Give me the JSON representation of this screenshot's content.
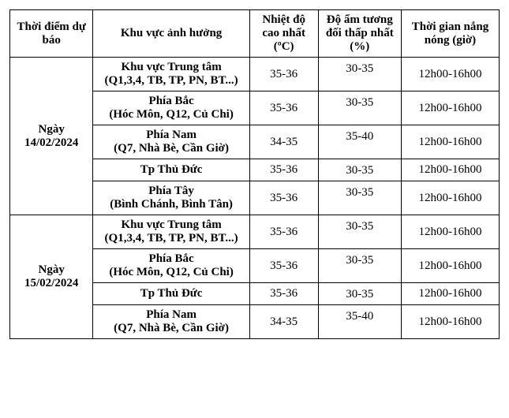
{
  "headers": {
    "date": "Thời điểm dự báo",
    "area": "Khu vực ảnh hưởng",
    "temp": "Nhiệt độ cao nhất (ºC)",
    "humid": "Độ ẩm tương đối thấp nhất (%)",
    "hours": "Thời gian nắng nóng (giờ)"
  },
  "groups": [
    {
      "date": "Ngày 14/02/2024",
      "rows": [
        {
          "area": "Khu vực Trung tâm (Q1,3,4, TB, TP, PN, BT...)",
          "temp": "35-36",
          "humid": "30-35",
          "hours": "12h00-16h00"
        },
        {
          "area": "Phía Bắc (Hóc Môn, Q12, Củ Chi)",
          "temp": "35-36",
          "humid": "30-35",
          "hours": "12h00-16h00"
        },
        {
          "area": "Phía Nam (Q7, Nhà Bè, Cần Giờ)",
          "temp": "34-35",
          "humid": "35-40",
          "hours": "12h00-16h00"
        },
        {
          "area": "Tp Thủ Đức",
          "temp": "35-36",
          "humid": "30-35",
          "hours": "12h00-16h00"
        },
        {
          "area": "Phía Tây (Bình Chánh, Bình Tân)",
          "temp": "35-36",
          "humid": "30-35",
          "hours": "12h00-16h00"
        }
      ]
    },
    {
      "date": "Ngày 15/02/2024",
      "rows": [
        {
          "area": "Khu vực Trung tâm (Q1,3,4, TB, TP, PN, BT...)",
          "temp": "35-36",
          "humid": "30-35",
          "hours": "12h00-16h00"
        },
        {
          "area": "Phía Bắc (Hóc Môn, Q12, Củ Chi)",
          "temp": "35-36",
          "humid": "30-35",
          "hours": "12h00-16h00"
        },
        {
          "area": "Tp Thủ Đức",
          "temp": "35-36",
          "humid": "30-35",
          "hours": "12h00-16h00"
        },
        {
          "area": "Phía Nam (Q7, Nhà Bè, Cần Giờ)",
          "temp": "34-35",
          "humid": "35-40",
          "hours": "12h00-16h00"
        }
      ]
    }
  ]
}
